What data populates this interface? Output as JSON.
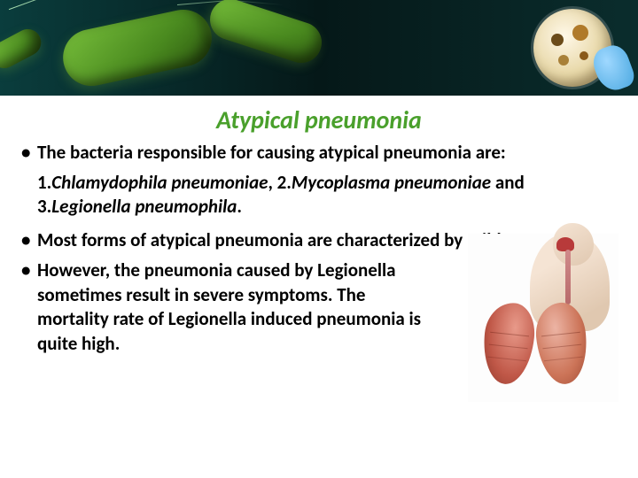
{
  "title": "Atypical pneumonia",
  "bullets": {
    "b1": "The bacteria responsible for causing atypical pneumonia are:",
    "sub_prefix1": "1.",
    "org1": "Chlamydophila pneumoniae",
    "sub_mid": ", 2.",
    "org2": "Mycoplasma pneumoniae",
    "sub_and": " and 3.",
    "org3": "Legionella pneumophila",
    "sub_end": ".",
    "b2": "Most forms of atypical pneumonia are characterized by mild symptoms;",
    "b3": "However, the pneumonia caused by Legionella sometimes result in severe symptoms. The mortality rate of Legionella induced pneumonia is quite high."
  },
  "colors": {
    "title": "#4aa02c",
    "bacteria": "#6fb536",
    "dish": "#e8d8a8",
    "lung": "#c05848"
  }
}
